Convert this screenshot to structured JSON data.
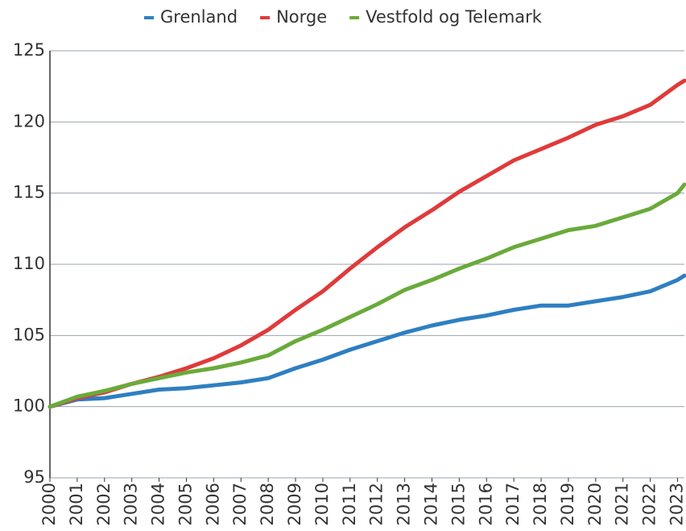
{
  "chart_data": {
    "type": "line",
    "x": [
      2000,
      2001,
      2002,
      2003,
      2004,
      2005,
      2006,
      2007,
      2008,
      2009,
      2010,
      2011,
      2012,
      2013,
      2014,
      2015,
      2016,
      2017,
      2018,
      2019,
      2020,
      2021,
      2022,
      2023,
      2023.25
    ],
    "series": [
      {
        "name": "Grenland",
        "color": "#2e7fc1",
        "values": [
          100,
          100.5,
          100.6,
          100.9,
          101.2,
          101.3,
          101.5,
          101.7,
          102.0,
          102.7,
          103.3,
          104.0,
          104.6,
          105.2,
          105.7,
          106.1,
          106.4,
          106.8,
          107.1,
          107.1,
          107.4,
          107.7,
          108.1,
          108.9,
          109.2
        ]
      },
      {
        "name": "Norge",
        "color": "#e03a3a",
        "values": [
          100,
          100.6,
          101.0,
          101.6,
          102.1,
          102.7,
          103.4,
          104.3,
          105.4,
          106.8,
          108.1,
          109.7,
          111.2,
          112.6,
          113.8,
          115.1,
          116.2,
          117.3,
          118.1,
          118.9,
          119.8,
          120.4,
          121.2,
          122.6,
          122.9
        ]
      },
      {
        "name": "Vestfold og Telemark",
        "color": "#6aaa3a",
        "values": [
          100,
          100.7,
          101.1,
          101.6,
          102.0,
          102.4,
          102.7,
          103.1,
          103.6,
          104.6,
          105.4,
          106.3,
          107.2,
          108.2,
          108.9,
          109.7,
          110.4,
          111.2,
          111.8,
          112.4,
          112.7,
          113.3,
          113.9,
          115.0,
          115.6
        ]
      }
    ],
    "xlim": [
      2000,
      2023.25
    ],
    "xticks": [
      2000,
      2001,
      2002,
      2003,
      2004,
      2005,
      2006,
      2007,
      2008,
      2009,
      2010,
      2011,
      2012,
      2013,
      2014,
      2015,
      2016,
      2017,
      2018,
      2019,
      2020,
      2021,
      2022,
      2023
    ],
    "ylim": [
      95,
      125
    ],
    "yticks": [
      95,
      100,
      105,
      110,
      115,
      120,
      125
    ],
    "grid": true,
    "legend": "top"
  }
}
